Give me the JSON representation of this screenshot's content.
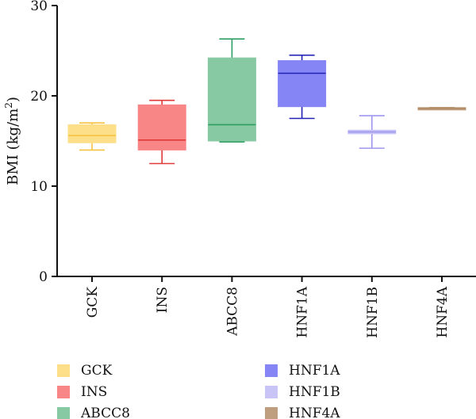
{
  "chart_data": {
    "type": "box",
    "ylabel": "BMI (kg/m²)",
    "ylabel_base": "BMI (kg/m",
    "ylabel_sup": "2",
    "ylabel_close": ")",
    "ylim": [
      0,
      30
    ],
    "yticks": [
      0,
      10,
      20,
      30
    ],
    "grid": false,
    "legend_position": "bottom",
    "categories": [
      "GCK",
      "INS",
      "ABCC8",
      "HNF1A",
      "HNF1B",
      "HNF4A"
    ],
    "series": [
      {
        "name": "GCK",
        "min": 14.0,
        "q1": 14.8,
        "median": 15.6,
        "q3": 16.8,
        "max": 17.0,
        "fill": "#FDDF8A",
        "stroke": "#F5C242"
      },
      {
        "name": "INS",
        "min": 12.5,
        "q1": 14.0,
        "median": 15.1,
        "q3": 19.0,
        "max": 19.5,
        "fill": "#F98686",
        "stroke": "#E03A3A"
      },
      {
        "name": "ABCC8",
        "min": 14.9,
        "q1": 15.0,
        "median": 16.8,
        "q3": 24.2,
        "max": 26.3,
        "fill": "#86C9A2",
        "stroke": "#2E9E63"
      },
      {
        "name": "HNF1A",
        "min": 17.5,
        "q1": 18.8,
        "median": 22.5,
        "q3": 23.9,
        "max": 24.5,
        "fill": "#8585F6",
        "stroke": "#2222B4"
      },
      {
        "name": "HNF1B",
        "min": 14.2,
        "q1": 15.8,
        "median": 16.0,
        "q3": 16.2,
        "max": 17.8,
        "fill": "#C8C4F6",
        "stroke": "#9E97EE"
      },
      {
        "name": "HNF4A",
        "min": 18.6,
        "q1": 18.6,
        "median": 18.6,
        "q3": 18.7,
        "max": 18.7,
        "fill": "#BE9E7E",
        "stroke": "#B08A64"
      }
    ]
  }
}
